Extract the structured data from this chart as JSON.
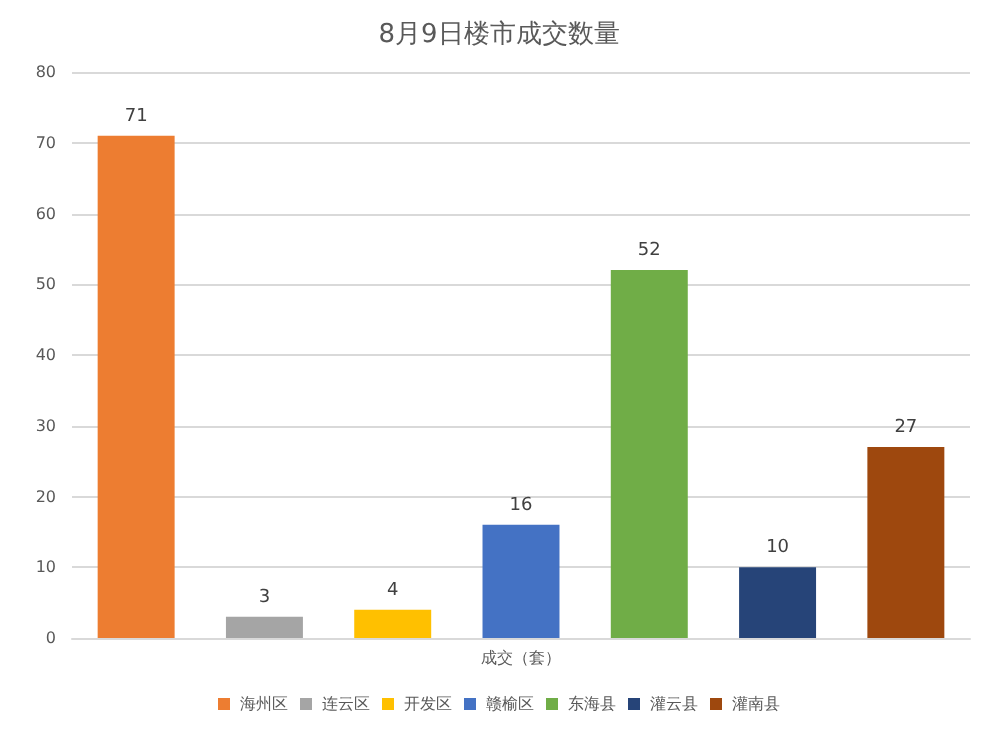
{
  "chart_data": {
    "type": "bar",
    "title": "8月9日楼市成交数量",
    "xlabel": "成交（套）",
    "categories": [
      null,
      null,
      null,
      null,
      null,
      null,
      null
    ],
    "series": [
      {
        "name": "海州区",
        "color": "#ed7d31",
        "values": [
          71,
          null,
          null,
          null,
          null,
          null,
          null
        ]
      },
      {
        "name": "连云区",
        "color": "#a5a5a5",
        "values": [
          null,
          3,
          null,
          null,
          null,
          null,
          null
        ]
      },
      {
        "name": "开发区",
        "color": "#ffc000",
        "values": [
          null,
          null,
          4,
          null,
          null,
          null,
          null
        ]
      },
      {
        "name": "赣榆区",
        "color": "#4472c4",
        "values": [
          null,
          null,
          null,
          16,
          null,
          null,
          null
        ]
      },
      {
        "name": "东海县",
        "color": "#70ad47",
        "values": [
          null,
          null,
          null,
          null,
          52,
          null,
          null
        ]
      },
      {
        "name": "灌云县",
        "color": "#264478",
        "values": [
          null,
          null,
          null,
          null,
          null,
          10,
          null
        ]
      },
      {
        "name": "灌南县",
        "color": "#9e480e",
        "values": [
          null,
          null,
          null,
          null,
          null,
          null,
          27
        ]
      }
    ],
    "stacked": true,
    "ylim": [
      0,
      80
    ],
    "yticks": [
      0,
      10,
      20,
      30,
      40,
      50,
      60,
      70,
      80
    ],
    "grid": "y",
    "legend": "bottom",
    "tick_labels": "y",
    "data_labels": true
  }
}
